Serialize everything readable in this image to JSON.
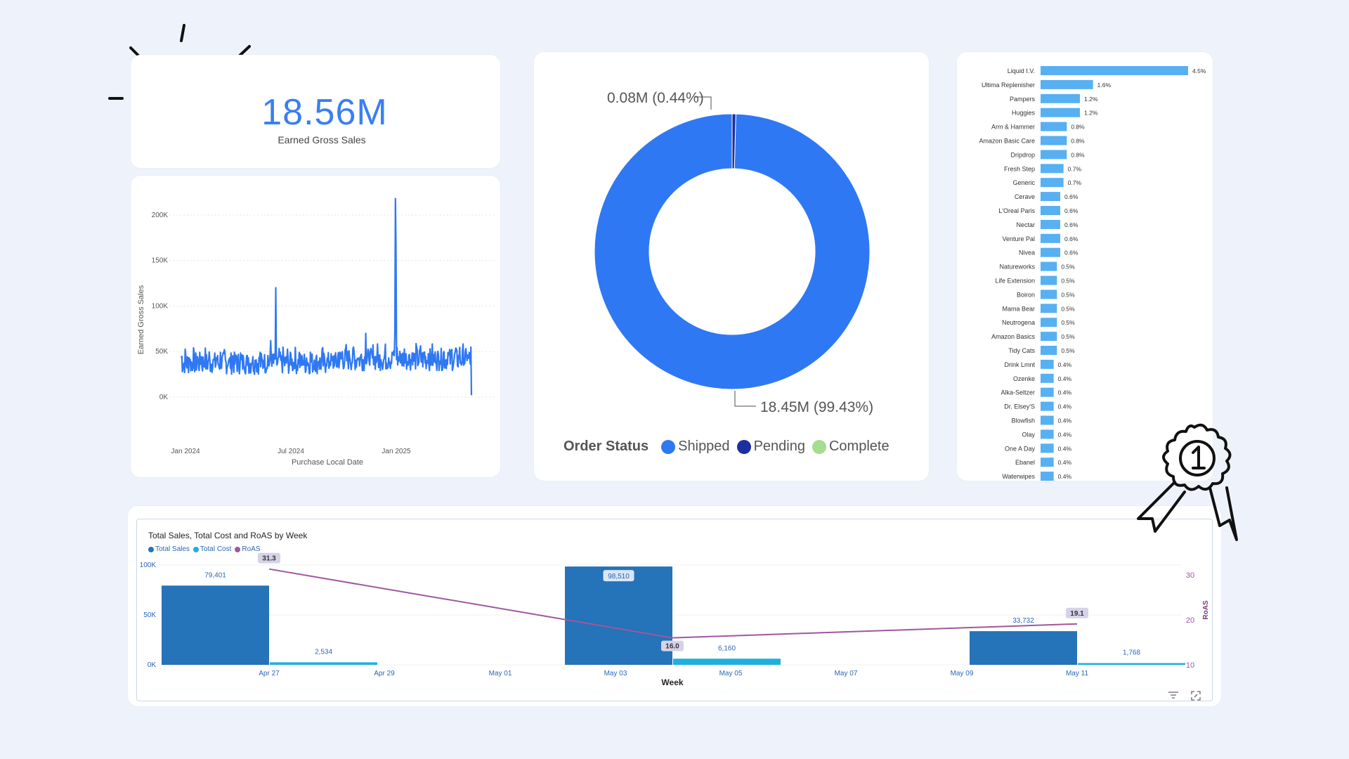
{
  "kpi": {
    "value": "18.56M",
    "label": "Earned Gross Sales"
  },
  "line_chart": {
    "chart_data": {
      "type": "line",
      "xlabel": "Purchase Local Date",
      "ylabel": "Earned Gross Sales",
      "y_ticks": [
        "0K",
        "50K",
        "100K",
        "150K",
        "200K"
      ],
      "ylim": [
        0,
        220000
      ],
      "x_ticks": [
        "Jan 2024",
        "Jul 2024",
        "Jan 2025"
      ],
      "spikes": [
        {
          "label": "mid-2024 spike",
          "value": 120000
        },
        {
          "label": "late-2024 spike",
          "value": 218000
        }
      ],
      "baseline_range": [
        25000,
        60000
      ]
    }
  },
  "donut": {
    "chart_data": {
      "type": "pie",
      "legend_title": "Order Status",
      "slices": [
        {
          "name": "Shipped",
          "value": 18.45,
          "label": "18.45M (99.43%)",
          "color": "#2f78f4"
        },
        {
          "name": "Pending",
          "value": 0.08,
          "label": "0.08M (0.44%)",
          "color": "#1a2fa0"
        },
        {
          "name": "Complete",
          "value": 0.0,
          "label": "",
          "color": "#a6dc8d"
        }
      ]
    }
  },
  "brand_bars": {
    "chart_data": {
      "type": "bar",
      "orientation": "horizontal",
      "categories": [
        "Liquid I.V.",
        "Ultima Replenisher",
        "Pampers",
        "Huggies",
        "Arm & Hammer",
        "Amazon Basic Care",
        "Dripdrop",
        "Fresh Step",
        "Generic",
        "Cerave",
        "L'Oreal Paris",
        "Nectar",
        "Venture Pal",
        "Nivea",
        "Natureworks",
        "Life Extension",
        "Boiron",
        "Mama Bear",
        "Neutrogena",
        "Amazon Basics",
        "Tidy Cats",
        "Drink Lmnt",
        "Ozenke",
        "Alka-Seltzer",
        "Dr. Elsey'S",
        "Blowfish",
        "Olay",
        "One A Day",
        "Ebanel",
        "Waterwipes"
      ],
      "values": [
        4.5,
        1.6,
        1.2,
        1.2,
        0.8,
        0.8,
        0.8,
        0.7,
        0.7,
        0.6,
        0.6,
        0.6,
        0.6,
        0.6,
        0.5,
        0.5,
        0.5,
        0.5,
        0.5,
        0.5,
        0.5,
        0.4,
        0.4,
        0.4,
        0.4,
        0.4,
        0.4,
        0.4,
        0.4,
        0.4
      ],
      "labels": [
        "4.5%",
        "1.6%",
        "1.2%",
        "1.2%",
        "0.8%",
        "0.8%",
        "0.8%",
        "0.7%",
        "0.7%",
        "0.6%",
        "0.6%",
        "0.6%",
        "0.6%",
        "0.6%",
        "0.5%",
        "0.5%",
        "0.5%",
        "0.5%",
        "0.5%",
        "0.5%",
        "0.5%",
        "0.4%",
        "0.4%",
        "0.4%",
        "0.4%",
        "0.4%",
        "0.4%",
        "0.4%",
        "0.4%",
        "0.4%"
      ],
      "color": "#57b0f2"
    }
  },
  "combo": {
    "title": "Total Sales, Total Cost and RoAS by Week",
    "legend": [
      "Total Sales",
      "Total Cost",
      "RoAS"
    ],
    "colors": {
      "sales": "#2573b8",
      "cost": "#1fb0df",
      "roas": "#a0579d"
    },
    "chart_data": {
      "type": "bar",
      "xlabel": "Week",
      "y2label": "RoAS",
      "x_ticks": [
        "Apr 27",
        "Apr 29",
        "May 01",
        "May 03",
        "May 05",
        "May 07",
        "May 09",
        "May 11"
      ],
      "y_ticks": [
        "0K",
        "50K",
        "100K"
      ],
      "y2_ticks": [
        "10",
        "20",
        "30"
      ],
      "ylim": [
        0,
        100000
      ],
      "y2lim": [
        10,
        30
      ],
      "series": [
        {
          "name": "Total Sales",
          "points": [
            {
              "week": "Apr 27",
              "value": 79401,
              "label": "79,401"
            },
            {
              "week": "May 04",
              "value": 98510,
              "label": "98,510"
            },
            {
              "week": "May 11",
              "value": 33732,
              "label": "33,732"
            }
          ]
        },
        {
          "name": "Total Cost",
          "points": [
            {
              "week": "Apr 27",
              "value": 2534,
              "label": "2,534"
            },
            {
              "week": "May 04",
              "value": 6160,
              "label": "6,160"
            },
            {
              "week": "May 11",
              "value": 1768,
              "label": "1,768"
            }
          ]
        },
        {
          "name": "RoAS",
          "points": [
            {
              "week": "Apr 27",
              "value": 31.3,
              "label": "31.3"
            },
            {
              "week": "May 04",
              "value": 16.0,
              "label": "16.0"
            },
            {
              "week": "May 11",
              "value": 19.1,
              "label": "19.1"
            }
          ]
        }
      ]
    }
  }
}
